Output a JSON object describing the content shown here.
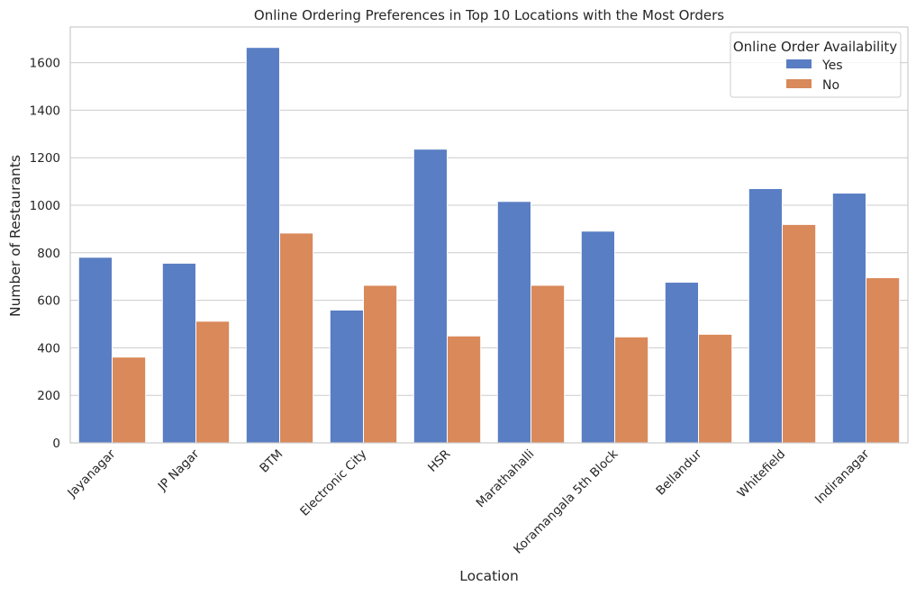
{
  "colors": {
    "yes": "#5a7ec3",
    "no": "#d9895a",
    "grid": "#cccccc",
    "axes_edge": "#cccccc",
    "text": "#262626",
    "background": "#ffffff"
  },
  "chart_data": {
    "type": "bar",
    "title": "Online Ordering Preferences in Top 10 Locations with the Most Orders",
    "xlabel": "Location",
    "ylabel": "Number of Restaurants",
    "categories": [
      "Jayanagar",
      "JP Nagar",
      "BTM",
      "Electronic City",
      "HSR",
      "Marathahalli",
      "Koramangala 5th Block",
      "Bellandur",
      "Whitefield",
      "Indiranagar"
    ],
    "series": [
      {
        "name": "Yes",
        "values": [
          781,
          756,
          1664,
          559,
          1236,
          1016,
          891,
          676,
          1070,
          1051
        ]
      },
      {
        "name": "No",
        "values": [
          361,
          512,
          883,
          663,
          450,
          663,
          446,
          457,
          919,
          695
        ]
      }
    ],
    "ylim": [
      0,
      1750
    ],
    "yticks": [
      0,
      200,
      400,
      600,
      800,
      1000,
      1200,
      1400,
      1600
    ],
    "grid": "horizontal",
    "legend": {
      "title": "Online Order Availability",
      "placement": "top-right"
    }
  }
}
